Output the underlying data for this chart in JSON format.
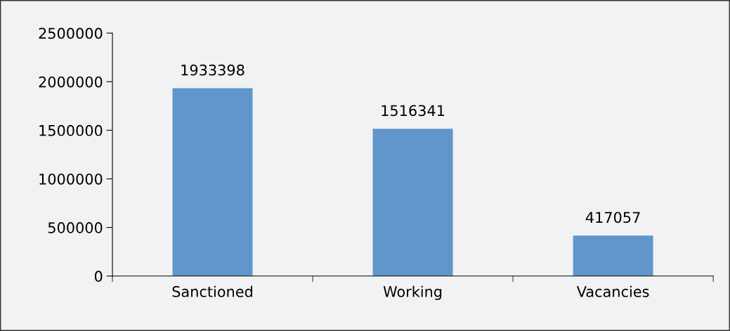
{
  "chart_data": {
    "type": "bar",
    "categories": [
      "Sanctioned",
      "Working",
      "Vacancies"
    ],
    "values": [
      1933398,
      1516341,
      417057
    ],
    "color": "#6096cb",
    "ylim": [
      0,
      2500000
    ],
    "yticks": [
      0,
      500000,
      1000000,
      1500000,
      2000000,
      2500000
    ],
    "data_labels": true,
    "grid": false,
    "legend": false
  }
}
